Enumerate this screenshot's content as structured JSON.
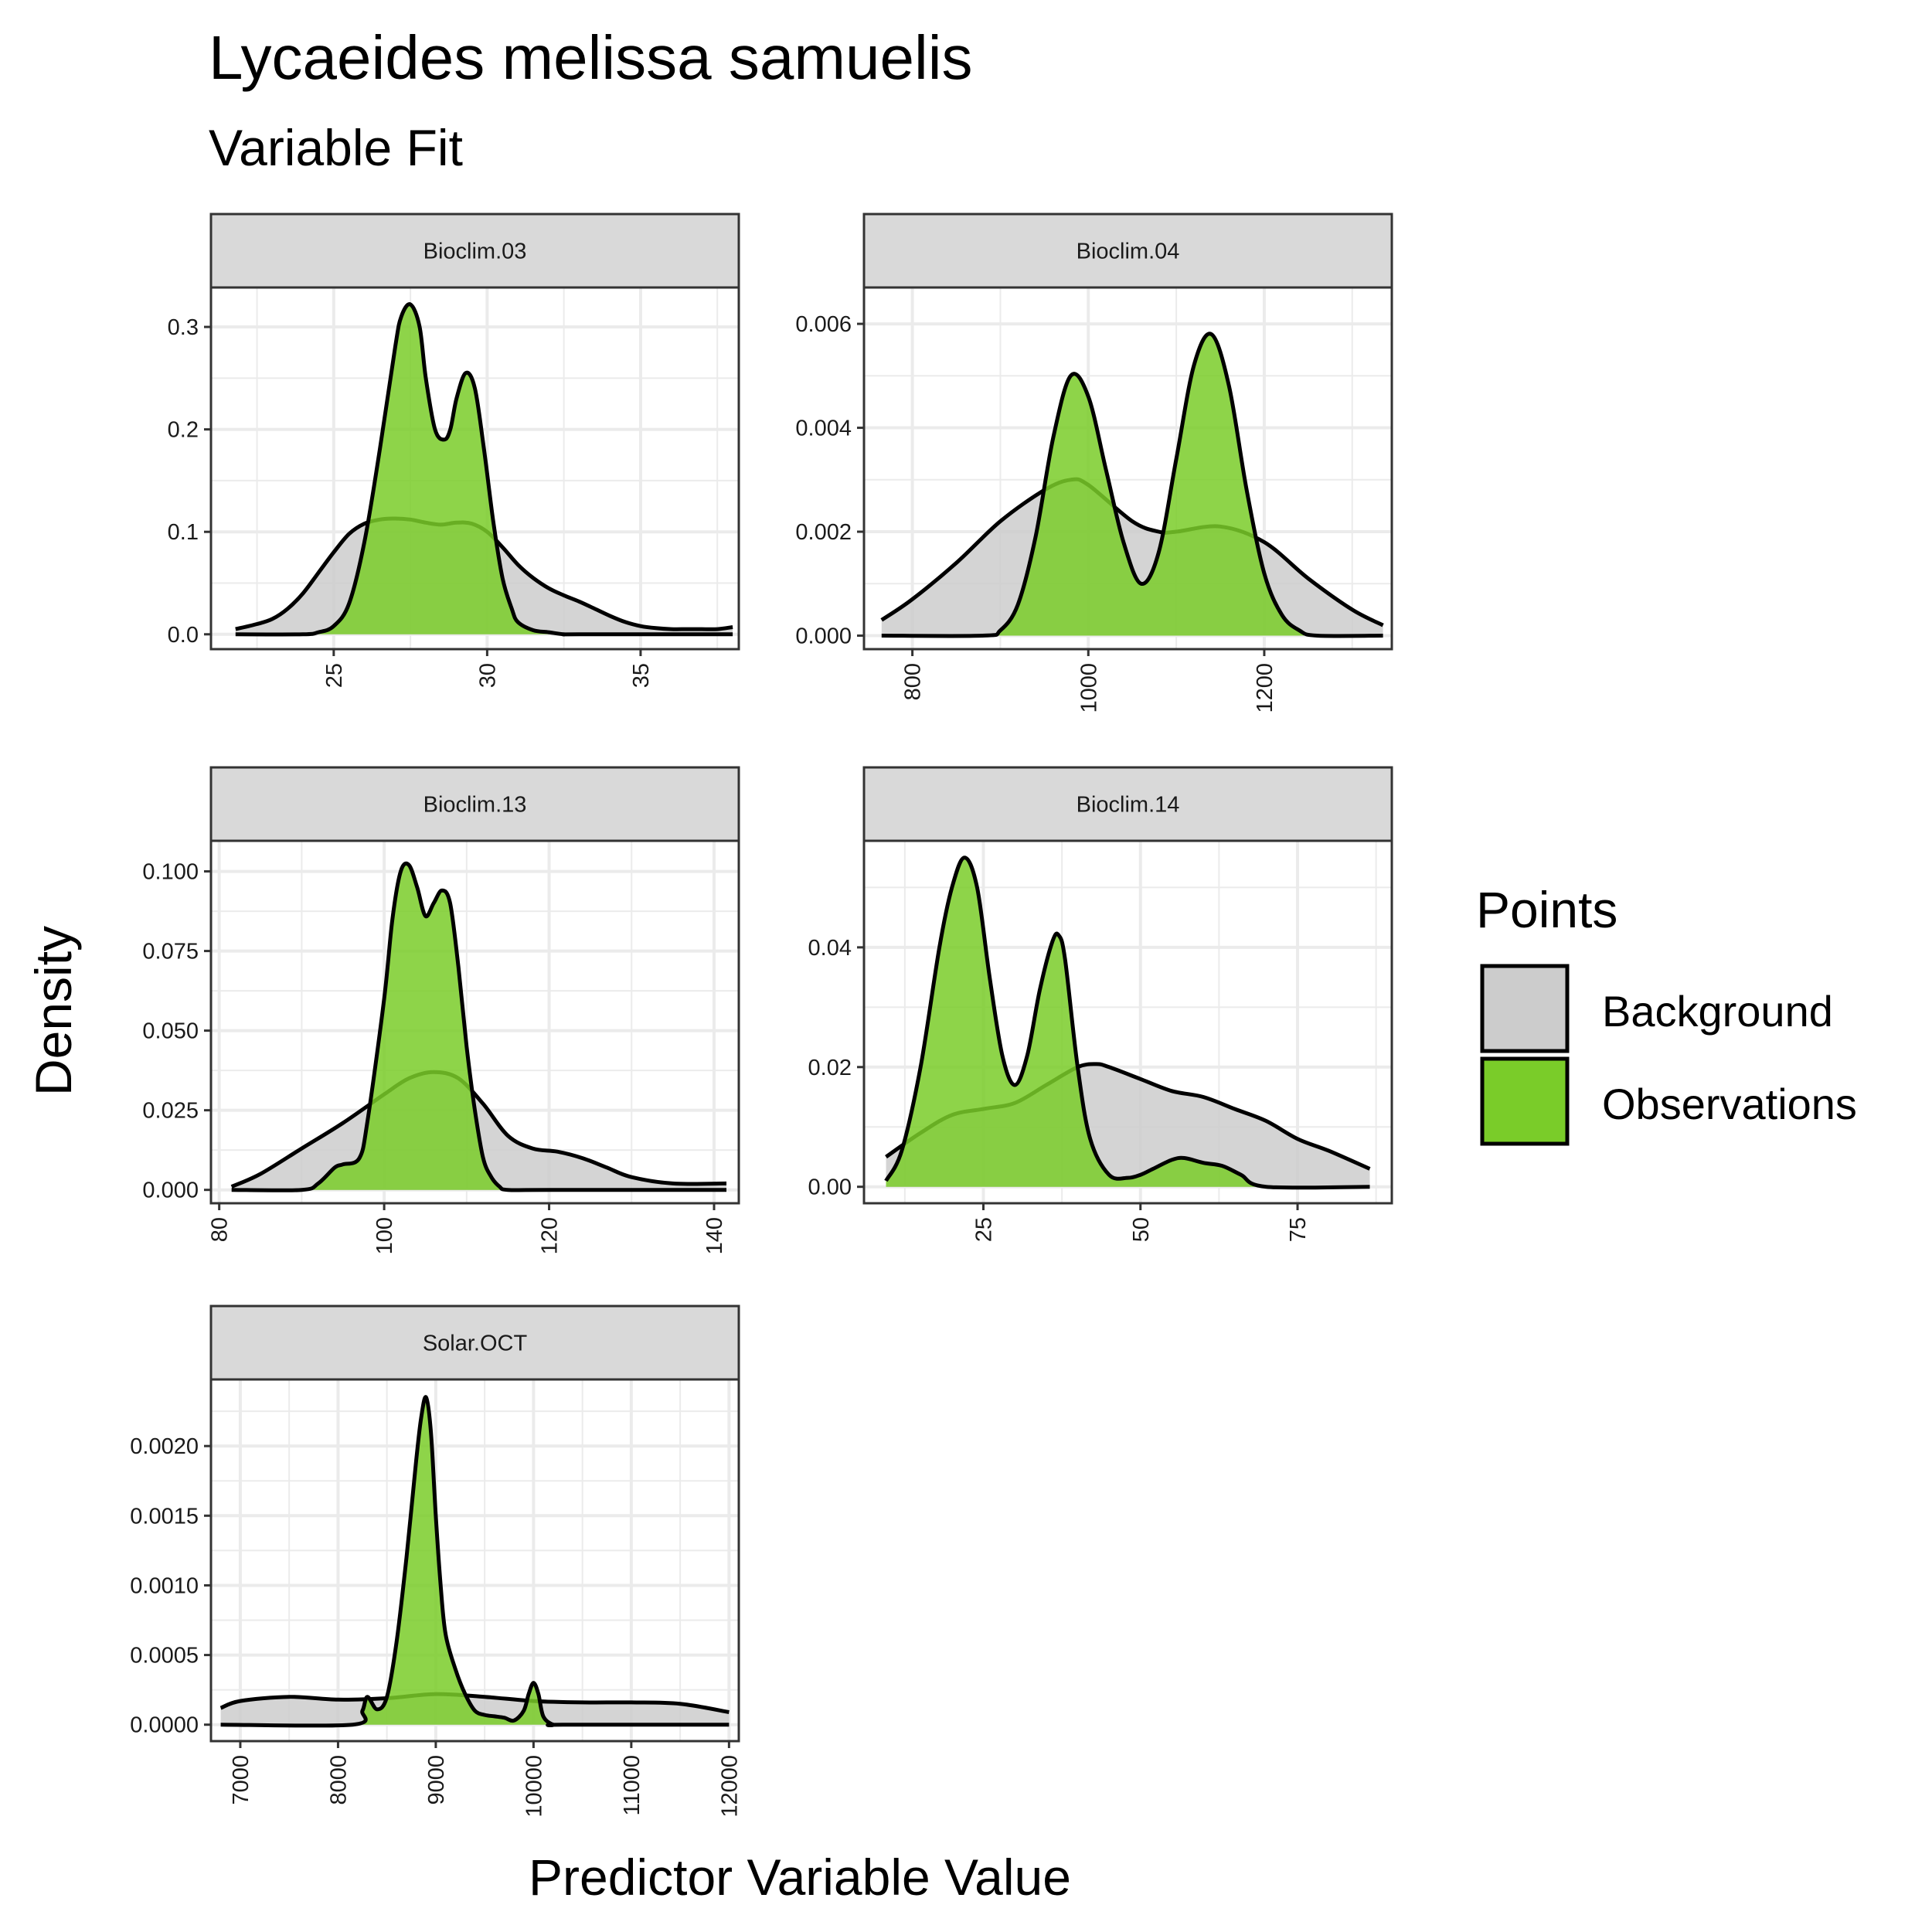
{
  "chart_data": {
    "type": "area",
    "title": "Lycaeides melissa samuelis",
    "subtitle": "Variable Fit",
    "xlabel": "Predictor Variable Value",
    "ylabel": "Density",
    "legend": {
      "title": "Points",
      "placement": "right",
      "entries": [
        {
          "label": "Background",
          "color": "#cccccc"
        },
        {
          "label": "Observations",
          "color": "#7acc29"
        }
      ]
    },
    "colors": {
      "background_fill": "#cccccc",
      "observations_fill": "#7acc29",
      "outline": "#000000",
      "strip_fill": "#d9d9d9",
      "grid": "#ebebeb"
    },
    "grid": true,
    "panels": [
      {
        "name": "Bioclim.03",
        "xlim": [
          21,
          38.2
        ],
        "ylim": [
          -0.0145,
          0.3385
        ],
        "xticks": [
          25,
          30,
          35
        ],
        "yticks": [
          0.0,
          0.1,
          0.2,
          0.3
        ],
        "ytick_labels": [
          "0.0",
          "0.1",
          "0.2",
          "0.3"
        ],
        "series": [
          {
            "name": "Background",
            "x": [
              21.8,
              22.5,
              23,
              23.5,
              24,
              24.5,
              25,
              25.5,
              26,
              26.5,
              27,
              27.5,
              28,
              28.5,
              29,
              29.5,
              30,
              30.5,
              31,
              31.5,
              32,
              32.5,
              33,
              33.5,
              34,
              34.5,
              35,
              35.5,
              36,
              36.5,
              37,
              37.5,
              38
            ],
            "y": [
              0.005,
              0.01,
              0.015,
              0.025,
              0.04,
              0.06,
              0.08,
              0.098,
              0.108,
              0.112,
              0.113,
              0.112,
              0.109,
              0.107,
              0.109,
              0.108,
              0.1,
              0.085,
              0.068,
              0.055,
              0.045,
              0.038,
              0.032,
              0.025,
              0.018,
              0.012,
              0.008,
              0.006,
              0.005,
              0.005,
              0.005,
              0.005,
              0.007
            ]
          },
          {
            "name": "Observations",
            "x": [
              21.8,
              24,
              24.5,
              25,
              25.5,
              26,
              26.5,
              27,
              27.2,
              27.5,
              27.8,
              28,
              28.3,
              28.6,
              28.8,
              29,
              29.3,
              29.6,
              29.9,
              30.2,
              30.5,
              30.8,
              31,
              31.5,
              32,
              32.5,
              33,
              38
            ],
            "y": [
              0,
              0,
              0.002,
              0.008,
              0.03,
              0.09,
              0.18,
              0.28,
              0.31,
              0.322,
              0.3,
              0.25,
              0.2,
              0.19,
              0.2,
              0.23,
              0.255,
              0.24,
              0.18,
              0.11,
              0.055,
              0.025,
              0.012,
              0.004,
              0.002,
              0,
              0,
              0
            ]
          }
        ]
      },
      {
        "name": "Bioclim.04",
        "xlim": [
          745,
          1345
        ],
        "ylim": [
          -0.00026,
          0.0067
        ],
        "xticks": [
          800,
          1000,
          1200
        ],
        "yticks": [
          0.0,
          0.002,
          0.004,
          0.006
        ],
        "ytick_labels": [
          "0.000",
          "0.002",
          "0.004",
          "0.006"
        ],
        "series": [
          {
            "name": "Background",
            "x": [
              765,
              800,
              850,
              900,
              950,
              980,
              1000,
              1050,
              1080,
              1100,
              1150,
              1200,
              1250,
              1300,
              1335
            ],
            "y": [
              0.0003,
              0.0007,
              0.0014,
              0.0022,
              0.0028,
              0.003,
              0.0029,
              0.0022,
              0.002,
              0.002,
              0.0021,
              0.0018,
              0.0011,
              0.0005,
              0.0002
            ]
          },
          {
            "name": "Observations",
            "x": [
              765,
              880,
              900,
              920,
              940,
              960,
              980,
              1000,
              1020,
              1040,
              1060,
              1080,
              1100,
              1120,
              1140,
              1160,
              1180,
              1200,
              1220,
              1240,
              1260,
              1335
            ],
            "y": [
              0,
              0,
              0.0001,
              0.0006,
              0.0019,
              0.0038,
              0.005,
              0.0046,
              0.0032,
              0.0018,
              0.001,
              0.0016,
              0.0034,
              0.0052,
              0.0058,
              0.0048,
              0.0028,
              0.0012,
              0.0004,
              0.0001,
              0,
              0
            ]
          }
        ]
      },
      {
        "name": "Bioclim.13",
        "xlim": [
          79,
          143
        ],
        "ylim": [
          -0.0042,
          0.1096
        ],
        "xticks": [
          80,
          100,
          120,
          140
        ],
        "yticks": [
          0.0,
          0.025,
          0.05,
          0.075,
          0.1
        ],
        "ytick_labels": [
          "0.000",
          "0.025",
          "0.050",
          "0.075",
          "0.100"
        ],
        "series": [
          {
            "name": "Background",
            "x": [
              81.5,
              85,
              90,
              95,
              100,
              103,
              106,
              109,
              112,
              115,
              118,
              121,
              124,
              127,
              130,
              135,
              141.5
            ],
            "y": [
              0.001,
              0.005,
              0.013,
              0.021,
              0.03,
              0.035,
              0.037,
              0.035,
              0.027,
              0.017,
              0.013,
              0.012,
              0.01,
              0.007,
              0.004,
              0.002,
              0.002
            ]
          },
          {
            "name": "Observations",
            "x": [
              81.5,
              90,
              92,
              94,
              95,
              97,
              98,
              100,
              101,
              102,
              103,
              104,
              105,
              106,
              107,
              108,
              109,
              110,
              111,
              112,
              113,
              114,
              115,
              120,
              141.5
            ],
            "y": [
              0,
              0,
              0.002,
              0.007,
              0.008,
              0.01,
              0.022,
              0.06,
              0.085,
              0.1,
              0.102,
              0.095,
              0.086,
              0.09,
              0.094,
              0.09,
              0.07,
              0.045,
              0.025,
              0.01,
              0.004,
              0.001,
              0,
              0,
              0
            ]
          }
        ]
      },
      {
        "name": "Bioclim.14",
        "xlim": [
          6,
          90
        ],
        "ylim": [
          -0.00275,
          0.0578
        ],
        "xticks": [
          25,
          50,
          75
        ],
        "yticks": [
          0.0,
          0.02,
          0.04
        ],
        "ytick_labels": [
          "0.00",
          "0.02",
          "0.04"
        ],
        "series": [
          {
            "name": "Background",
            "x": [
              9.5,
              15,
              20,
              25,
              30,
              35,
              40,
              43,
              45,
              50,
              55,
              60,
              65,
              70,
              75,
              80,
              86.5
            ],
            "y": [
              0.005,
              0.009,
              0.012,
              0.013,
              0.014,
              0.017,
              0.02,
              0.0205,
              0.02,
              0.018,
              0.016,
              0.015,
              0.013,
              0.011,
              0.008,
              0.006,
              0.003
            ]
          },
          {
            "name": "Observations",
            "x": [
              9.5,
              12,
              15,
              18,
              20,
              22,
              24,
              26,
              28,
              30,
              32,
              34,
              36,
              37,
              38,
              40,
              42,
              45,
              48,
              50,
              52,
              55,
              57,
              60,
              63,
              66,
              70,
              86.5
            ],
            "y": [
              0.001,
              0.006,
              0.02,
              0.04,
              0.05,
              0.055,
              0.05,
              0.035,
              0.022,
              0.017,
              0.022,
              0.033,
              0.041,
              0.042,
              0.038,
              0.02,
              0.008,
              0.002,
              0.0015,
              0.002,
              0.003,
              0.0045,
              0.0048,
              0.004,
              0.0035,
              0.002,
              0,
              0
            ]
          }
        ]
      },
      {
        "name": "Solar.OCT",
        "xlim": [
          6700,
          12100
        ],
        "ylim": [
          -0.000118,
          0.002478
        ],
        "xticks": [
          7000,
          8000,
          9000,
          10000,
          11000,
          12000
        ],
        "yticks": [
          0.0,
          0.0005,
          0.001,
          0.0015,
          0.002
        ],
        "ytick_labels": [
          "0.0000",
          "0.0005",
          "0.0010",
          "0.0015",
          "0.0020"
        ],
        "series": [
          {
            "name": "Background",
            "x": [
              6800,
              7000,
              7500,
              8000,
              8500,
              9000,
              9500,
              10000,
              10500,
              11000,
              11500,
              12000
            ],
            "y": [
              0.00012,
              0.00017,
              0.0002,
              0.00018,
              0.00019,
              0.00022,
              0.0002,
              0.00017,
              0.00016,
              0.00016,
              0.00015,
              9e-05
            ]
          },
          {
            "name": "Observations",
            "x": [
              6800,
              8150,
              8250,
              8300,
              8400,
              8500,
              8600,
              8700,
              8800,
              8850,
              8900,
              8950,
              9000,
              9050,
              9100,
              9200,
              9300,
              9400,
              9500,
              9600,
              9700,
              9800,
              9900,
              9950,
              10000,
              10050,
              10100,
              10200,
              10300,
              12000
            ],
            "y": [
              0,
              0,
              0.0001,
              0.0002,
              0.00011,
              0.0002,
              0.0006,
              0.0012,
              0.0019,
              0.0022,
              0.00235,
              0.0021,
              0.0015,
              0.001,
              0.00065,
              0.0004,
              0.00022,
              0.0001,
              7e-05,
              6e-05,
              5e-05,
              3e-05,
              0.0001,
              0.00022,
              0.0003,
              0.00022,
              6e-05,
              0,
              0,
              0
            ]
          }
        ]
      }
    ]
  }
}
